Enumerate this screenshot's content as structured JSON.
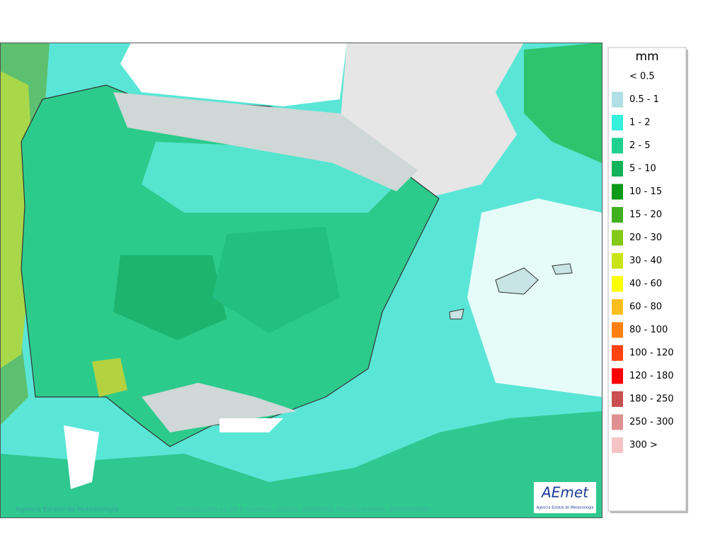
{
  "legend": {
    "title": "mm",
    "items": [
      {
        "label": "< 0.5",
        "color": null
      },
      {
        "label": "0.5 - 1",
        "color": "#b0dfe5"
      },
      {
        "label": "1 - 2",
        "color": "#35f0dc"
      },
      {
        "label": "2 - 5",
        "color": "#1fd08e"
      },
      {
        "label": "5 - 10",
        "color": "#14b25a"
      },
      {
        "label": "10 - 15",
        "color": "#0c9a18"
      },
      {
        "label": "15 - 20",
        "color": "#40b020"
      },
      {
        "label": "20 - 30",
        "color": "#84c818"
      },
      {
        "label": "30 - 40",
        "color": "#c8e418"
      },
      {
        "label": "40 - 60",
        "color": "#ffff00"
      },
      {
        "label": "60 - 80",
        "color": "#ffbe1e"
      },
      {
        "label": "80 - 100",
        "color": "#ff8010"
      },
      {
        "label": "100 - 120",
        "color": "#ff4410"
      },
      {
        "label": "120 - 180",
        "color": "#ff0000"
      },
      {
        "label": "180 - 250",
        "color": "#c85050"
      },
      {
        "label": "250 - 300",
        "color": "#e09090"
      },
      {
        "label": "300 >",
        "color": "#f4c4c4"
      }
    ]
  },
  "footer": {
    "credit": "Agencia Estatal de Meteorología",
    "caption": "Precipitación en 24 h máxima. Validez: 20260302 Pasada modelo: 2026030200"
  },
  "logo": {
    "name": "AEmet",
    "subtitle": "Agencia Estatal de Meteorología"
  }
}
